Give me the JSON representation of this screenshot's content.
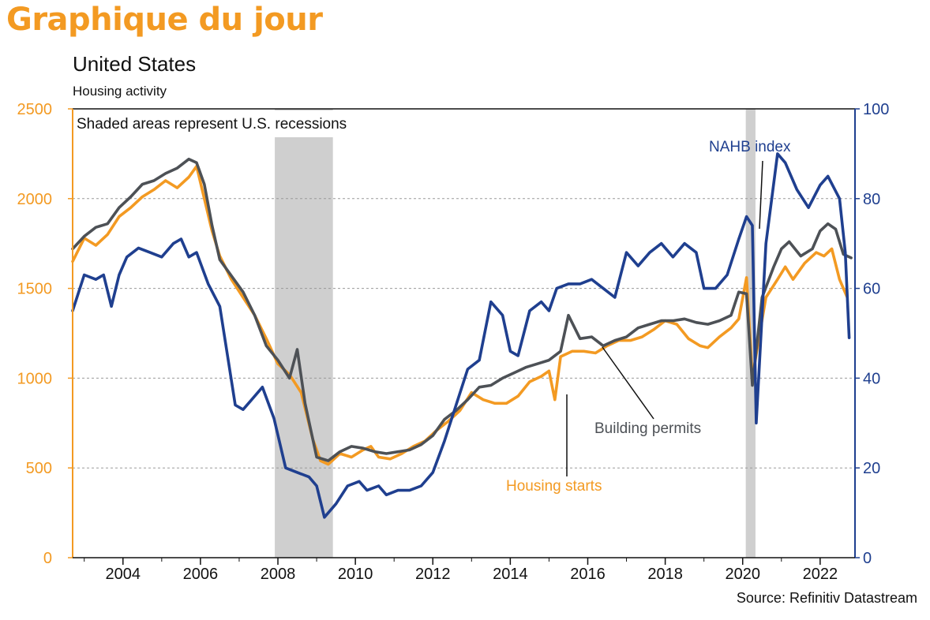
{
  "banner": "Graphique du jour",
  "title": "United States",
  "subtitle": "Housing activity",
  "source": "Source: Refinitiv Datastream",
  "chart_data": {
    "type": "line",
    "note": "Shaded areas represent U.S. recessions",
    "x_range": [
      2002.7,
      2022.9
    ],
    "ylim_left": [
      0,
      2500
    ],
    "ylim_right": [
      0,
      100
    ],
    "yticks_left": [
      0,
      500,
      1000,
      1500,
      2000,
      2500
    ],
    "yticks_right": [
      0,
      20,
      40,
      60,
      80,
      100
    ],
    "xticks": [
      2004,
      2006,
      2008,
      2010,
      2012,
      2014,
      2016,
      2018,
      2020,
      2022
    ],
    "grid": "horizontal dashed",
    "recessions": [
      [
        2007.92,
        2009.42
      ],
      [
        2020.08,
        2020.33
      ]
    ],
    "colors": {
      "housing_starts": "#F39A22",
      "building_permits": "#4D5156",
      "nahb": "#1F3F8F",
      "recession": "#CFCFCF"
    },
    "series": [
      {
        "name": "Housing starts",
        "axis": "left",
        "x": [
          2002.7,
          2003.0,
          2003.3,
          2003.6,
          2003.9,
          2004.2,
          2004.5,
          2004.8,
          2005.1,
          2005.4,
          2005.7,
          2005.9,
          2006.1,
          2006.3,
          2006.5,
          2006.8,
          2007.1,
          2007.4,
          2007.7,
          2008.0,
          2008.3,
          2008.6,
          2008.9,
          2009.1,
          2009.3,
          2009.6,
          2009.9,
          2010.2,
          2010.4,
          2010.6,
          2010.9,
          2011.2,
          2011.5,
          2011.8,
          2012.1,
          2012.4,
          2012.7,
          2013.0,
          2013.3,
          2013.6,
          2013.9,
          2014.2,
          2014.5,
          2014.8,
          2015.0,
          2015.15,
          2015.3,
          2015.6,
          2015.9,
          2016.2,
          2016.5,
          2016.8,
          2017.1,
          2017.4,
          2017.7,
          2018.0,
          2018.3,
          2018.6,
          2018.9,
          2019.1,
          2019.4,
          2019.7,
          2019.9,
          2020.1,
          2020.25,
          2020.4,
          2020.6,
          2020.9,
          2021.1,
          2021.3,
          2021.6,
          2021.9,
          2022.1,
          2022.3,
          2022.5,
          2022.7
        ],
        "values": [
          1650,
          1780,
          1740,
          1800,
          1900,
          1950,
          2010,
          2050,
          2100,
          2060,
          2120,
          2180,
          2000,
          1820,
          1680,
          1550,
          1450,
          1350,
          1220,
          1080,
          1020,
          920,
          660,
          540,
          520,
          580,
          560,
          600,
          620,
          560,
          550,
          580,
          620,
          650,
          710,
          760,
          820,
          920,
          880,
          860,
          860,
          900,
          980,
          1010,
          1040,
          880,
          1120,
          1150,
          1150,
          1140,
          1180,
          1210,
          1210,
          1230,
          1270,
          1320,
          1300,
          1220,
          1180,
          1170,
          1230,
          1280,
          1330,
          1560,
          1000,
          1200,
          1450,
          1550,
          1620,
          1550,
          1640,
          1700,
          1680,
          1720,
          1550,
          1450
        ]
      },
      {
        "name": "Building permits",
        "axis": "left",
        "x": [
          2002.7,
          2003.0,
          2003.3,
          2003.6,
          2003.9,
          2004.2,
          2004.5,
          2004.8,
          2005.1,
          2005.4,
          2005.7,
          2005.9,
          2006.1,
          2006.3,
          2006.5,
          2006.8,
          2007.1,
          2007.4,
          2007.7,
          2008.0,
          2008.3,
          2008.5,
          2008.7,
          2009.0,
          2009.3,
          2009.6,
          2009.9,
          2010.2,
          2010.5,
          2010.8,
          2011.1,
          2011.4,
          2011.7,
          2012.0,
          2012.3,
          2012.6,
          2012.9,
          2013.2,
          2013.5,
          2013.8,
          2014.1,
          2014.4,
          2014.7,
          2015.0,
          2015.3,
          2015.5,
          2015.8,
          2016.1,
          2016.4,
          2016.7,
          2017.0,
          2017.3,
          2017.6,
          2017.9,
          2018.2,
          2018.5,
          2018.8,
          2019.1,
          2019.4,
          2019.7,
          2019.9,
          2020.1,
          2020.25,
          2020.5,
          2020.8,
          2021.0,
          2021.2,
          2021.5,
          2021.8,
          2022.0,
          2022.2,
          2022.4,
          2022.6,
          2022.8
        ],
        "values": [
          1720,
          1790,
          1840,
          1860,
          1950,
          2010,
          2080,
          2100,
          2140,
          2170,
          2220,
          2200,
          2080,
          1850,
          1660,
          1570,
          1480,
          1350,
          1180,
          1100,
          1000,
          1160,
          860,
          560,
          540,
          590,
          620,
          610,
          590,
          580,
          590,
          600,
          630,
          680,
          770,
          820,
          880,
          950,
          960,
          1000,
          1030,
          1060,
          1080,
          1100,
          1150,
          1350,
          1220,
          1230,
          1180,
          1210,
          1230,
          1280,
          1300,
          1320,
          1320,
          1330,
          1310,
          1300,
          1320,
          1350,
          1480,
          1470,
          960,
          1450,
          1620,
          1720,
          1760,
          1680,
          1720,
          1820,
          1860,
          1830,
          1690,
          1670
        ]
      },
      {
        "name": "NAHB index",
        "axis": "right",
        "x": [
          2002.7,
          2003.0,
          2003.3,
          2003.5,
          2003.7,
          2003.9,
          2004.1,
          2004.4,
          2004.7,
          2005.0,
          2005.3,
          2005.5,
          2005.7,
          2005.9,
          2006.2,
          2006.5,
          2006.7,
          2006.9,
          2007.1,
          2007.3,
          2007.6,
          2007.9,
          2008.2,
          2008.5,
          2008.8,
          2009.0,
          2009.2,
          2009.5,
          2009.8,
          2010.1,
          2010.3,
          2010.6,
          2010.8,
          2011.1,
          2011.4,
          2011.7,
          2012.0,
          2012.3,
          2012.6,
          2012.9,
          2013.2,
          2013.5,
          2013.8,
          2014.0,
          2014.2,
          2014.5,
          2014.8,
          2015.0,
          2015.2,
          2015.5,
          2015.8,
          2016.1,
          2016.4,
          2016.7,
          2017.0,
          2017.3,
          2017.6,
          2017.9,
          2018.2,
          2018.5,
          2018.8,
          2019.0,
          2019.3,
          2019.6,
          2019.9,
          2020.1,
          2020.25,
          2020.35,
          2020.6,
          2020.9,
          2021.1,
          2021.4,
          2021.7,
          2022.0,
          2022.2,
          2022.5,
          2022.65,
          2022.75
        ],
        "values": [
          55,
          63,
          62,
          63,
          56,
          63,
          67,
          69,
          68,
          67,
          70,
          71,
          67,
          68,
          61,
          56,
          45,
          34,
          33,
          35,
          38,
          31,
          20,
          19,
          18,
          16,
          9,
          12,
          16,
          17,
          15,
          16,
          14,
          15,
          15,
          16,
          19,
          26,
          34,
          42,
          44,
          57,
          54,
          46,
          45,
          55,
          57,
          55,
          60,
          61,
          61,
          62,
          60,
          58,
          68,
          65,
          68,
          70,
          67,
          70,
          68,
          60,
          60,
          63,
          71,
          76,
          74,
          30,
          70,
          90,
          88,
          82,
          78,
          83,
          85,
          80,
          68,
          49
        ]
      }
    ],
    "annotations": [
      {
        "text": "NAHB index",
        "color": "#1F3F8F"
      },
      {
        "text": "Building permits",
        "color": "#4D5156"
      },
      {
        "text": "Housing starts",
        "color": "#F39A22"
      }
    ]
  }
}
